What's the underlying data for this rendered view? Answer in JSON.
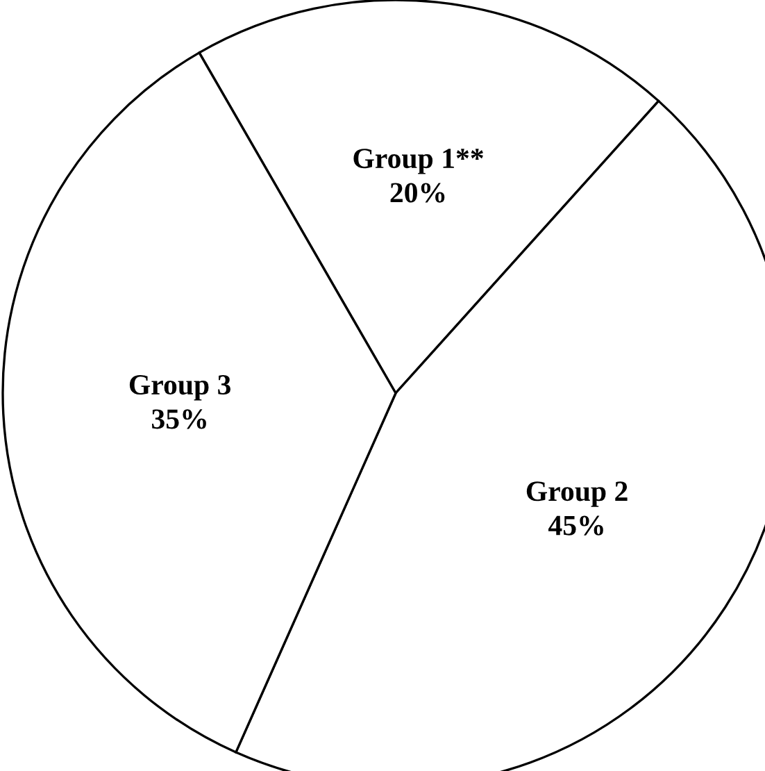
{
  "chart_data": {
    "type": "pie",
    "categories": [
      "Group 1**",
      "Group 2",
      "Group 3"
    ],
    "values": [
      20,
      45,
      35
    ],
    "colors": [
      "#ffffff",
      "#ffffff",
      "#ffffff"
    ],
    "value_labels": [
      "20%",
      "45%",
      "35%"
    ]
  }
}
